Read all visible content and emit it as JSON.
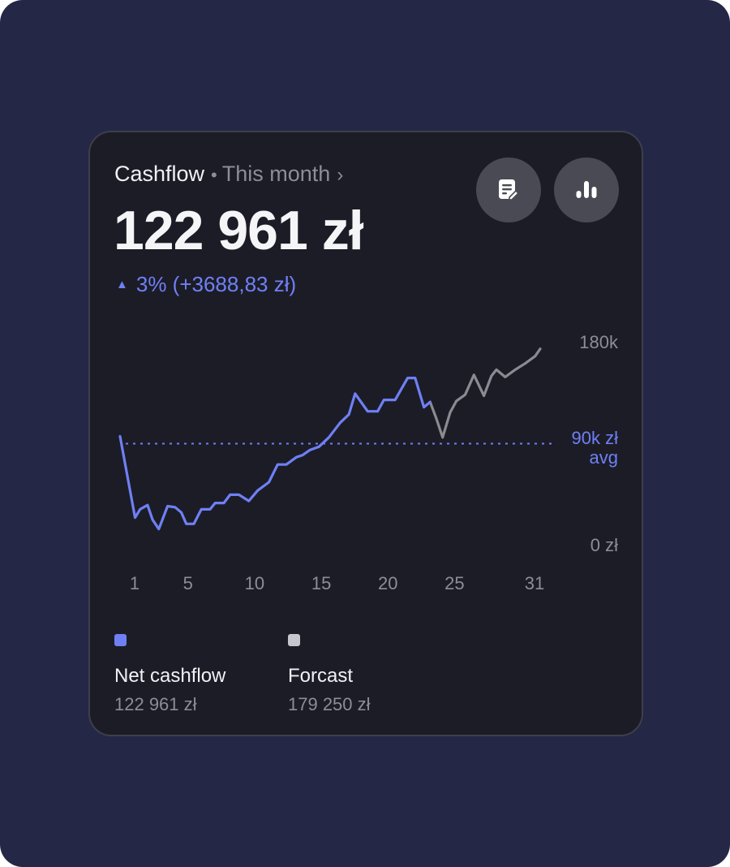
{
  "card": {
    "title": "Cashflow",
    "separator": "•",
    "period": "This month",
    "chevron": "›",
    "value": "122 961 zł",
    "change_arrow": "▲",
    "change": "3% (+3688,83 zł)",
    "buttons": [
      {
        "icon": "report-icon"
      },
      {
        "icon": "bar-chart-icon"
      }
    ]
  },
  "colors": {
    "background": "#242746",
    "card": "#1c1c27",
    "accent": "#6f80f4",
    "forecast": "#8a8a90",
    "muted": "#8d8d96"
  },
  "chart_data": {
    "type": "line",
    "x_ticks": [
      "1",
      "5",
      "10",
      "15",
      "20",
      "25",
      "31"
    ],
    "y_ticks": [
      "0 zł",
      "180k"
    ],
    "ylim": [
      0,
      180000
    ],
    "avg": {
      "value": 90000,
      "label_line1": "90k zł",
      "label_line2": "avg"
    },
    "series": [
      {
        "name": "Net cashflow",
        "color": "#6f80f4",
        "points": [
          [
            0.0,
            97000
          ],
          [
            1.2,
            19000
          ],
          [
            1.6,
            27000
          ],
          [
            2.2,
            31000
          ],
          [
            2.6,
            17000
          ],
          [
            3.1,
            8000
          ],
          [
            3.8,
            30000
          ],
          [
            4.4,
            29000
          ],
          [
            4.9,
            24000
          ],
          [
            5.3,
            13000
          ],
          [
            5.9,
            13000
          ],
          [
            6.5,
            27000
          ],
          [
            7.2,
            27000
          ],
          [
            7.6,
            33000
          ],
          [
            8.3,
            33000
          ],
          [
            8.8,
            41000
          ],
          [
            9.5,
            41000
          ],
          [
            10.3,
            35000
          ],
          [
            11.0,
            45000
          ],
          [
            11.9,
            53000
          ],
          [
            12.6,
            70000
          ],
          [
            13.3,
            70000
          ],
          [
            14.1,
            77000
          ],
          [
            14.6,
            79000
          ],
          [
            15.2,
            84000
          ],
          [
            15.9,
            87000
          ],
          [
            16.7,
            96000
          ],
          [
            17.6,
            110000
          ],
          [
            18.3,
            118000
          ],
          [
            18.8,
            138000
          ],
          [
            19.8,
            121000
          ],
          [
            20.6,
            121000
          ],
          [
            21.1,
            132000
          ],
          [
            22.0,
            132000
          ],
          [
            23.0,
            153000
          ],
          [
            23.6,
            153000
          ],
          [
            24.3,
            125000
          ],
          [
            24.8,
            130000
          ]
        ]
      },
      {
        "name": "Forcast",
        "color": "#8a8a90",
        "points": [
          [
            24.8,
            130000
          ],
          [
            25.3,
            114000
          ],
          [
            25.8,
            96000
          ],
          [
            26.4,
            120000
          ],
          [
            26.9,
            131000
          ],
          [
            27.6,
            137000
          ],
          [
            28.3,
            156000
          ],
          [
            29.1,
            136000
          ],
          [
            29.7,
            155000
          ],
          [
            30.1,
            161000
          ],
          [
            30.8,
            154000
          ],
          [
            31.6,
            161000
          ],
          [
            32.4,
            167000
          ],
          [
            33.2,
            174000
          ],
          [
            33.6,
            181000
          ]
        ]
      }
    ]
  },
  "legend": [
    {
      "name": "Net cashflow",
      "value": "122 961 zł",
      "color": "#6f80f4"
    },
    {
      "name": "Forcast",
      "value": "179 250 zł",
      "color": "#c6c7cc"
    }
  ]
}
